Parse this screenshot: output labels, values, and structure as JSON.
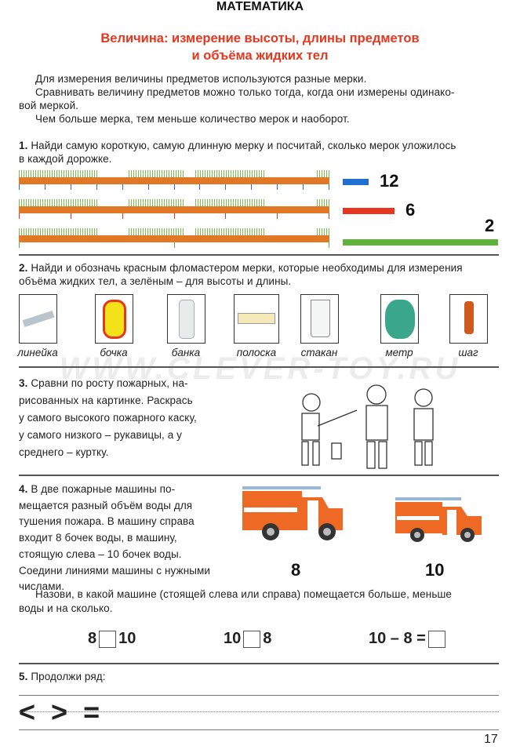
{
  "header": {
    "subject": "МАТЕМАТИКА",
    "topic_line1": "Величина: измерение высоты, длины предметов",
    "topic_line2": "и объёма жидких тел"
  },
  "intro": [
    "Для измерения величины предметов используются разные мерки.",
    "Сравнивать величину предметов можно только тогда, когда они измерены одинако-",
    "вой меркой.",
    "Чем больше мерка, тем меньше количество мерок и наоборот."
  ],
  "task1": {
    "num": "1.",
    "text1": " Найди самую короткую, самую длинную мерку и посчитай, сколько мерок уложилось",
    "text2": "в каждой дорожке.",
    "tracks": [
      {
        "count": 12,
        "label": "12",
        "color": "#1e6fd0"
      },
      {
        "count": 6,
        "label": "6",
        "color": "#e8361e"
      },
      {
        "count": 2,
        "label": "2",
        "color": "#5cb335"
      }
    ]
  },
  "task2": {
    "num": "2.",
    "text1": " Найди и обозначь красным фломастером мерки, которые необходимы для измерения",
    "text2": "объёма жидких тел, а зелёным – для высоты и длины.",
    "items": [
      "линейка",
      "бочка",
      "банка",
      "полоска",
      "стакан",
      "метр",
      "шаг"
    ]
  },
  "watermark": "WWW.CLEVER-TOY.RU",
  "task3": {
    "num": "3.",
    "lines": [
      " Сравни по росту пожарных, на-",
      "рисованных на картинке. Раскрась",
      "у самого высокого пожарного каску,",
      "у самого низкого – рукавицы, а у",
      "среднего – куртку."
    ]
  },
  "task4": {
    "num": "4.",
    "lines": [
      " В две пожарные машины по-",
      "мещается разный объём воды для",
      "тушения пожара. В машину справа",
      "входит 8 бочек воды, в машину,",
      "стоящую слева – 10 бочек воды.",
      "Соедини линиями машины с нужными",
      "числами."
    ],
    "numbers": [
      "8",
      "10"
    ],
    "question1": "Назови, в какой машине (стоящей слева или справа) помещается больше, меньше",
    "question2": "воды и на сколько.",
    "expr1": {
      "a": "8",
      "b": "10"
    },
    "expr2": {
      "a": "10",
      "b": "8"
    },
    "expr3": "10 – 8 ="
  },
  "task5": {
    "num": "5.",
    "text": " Продолжи ряд:",
    "symbols": [
      "<",
      ">",
      "="
    ]
  },
  "page_number": "17"
}
